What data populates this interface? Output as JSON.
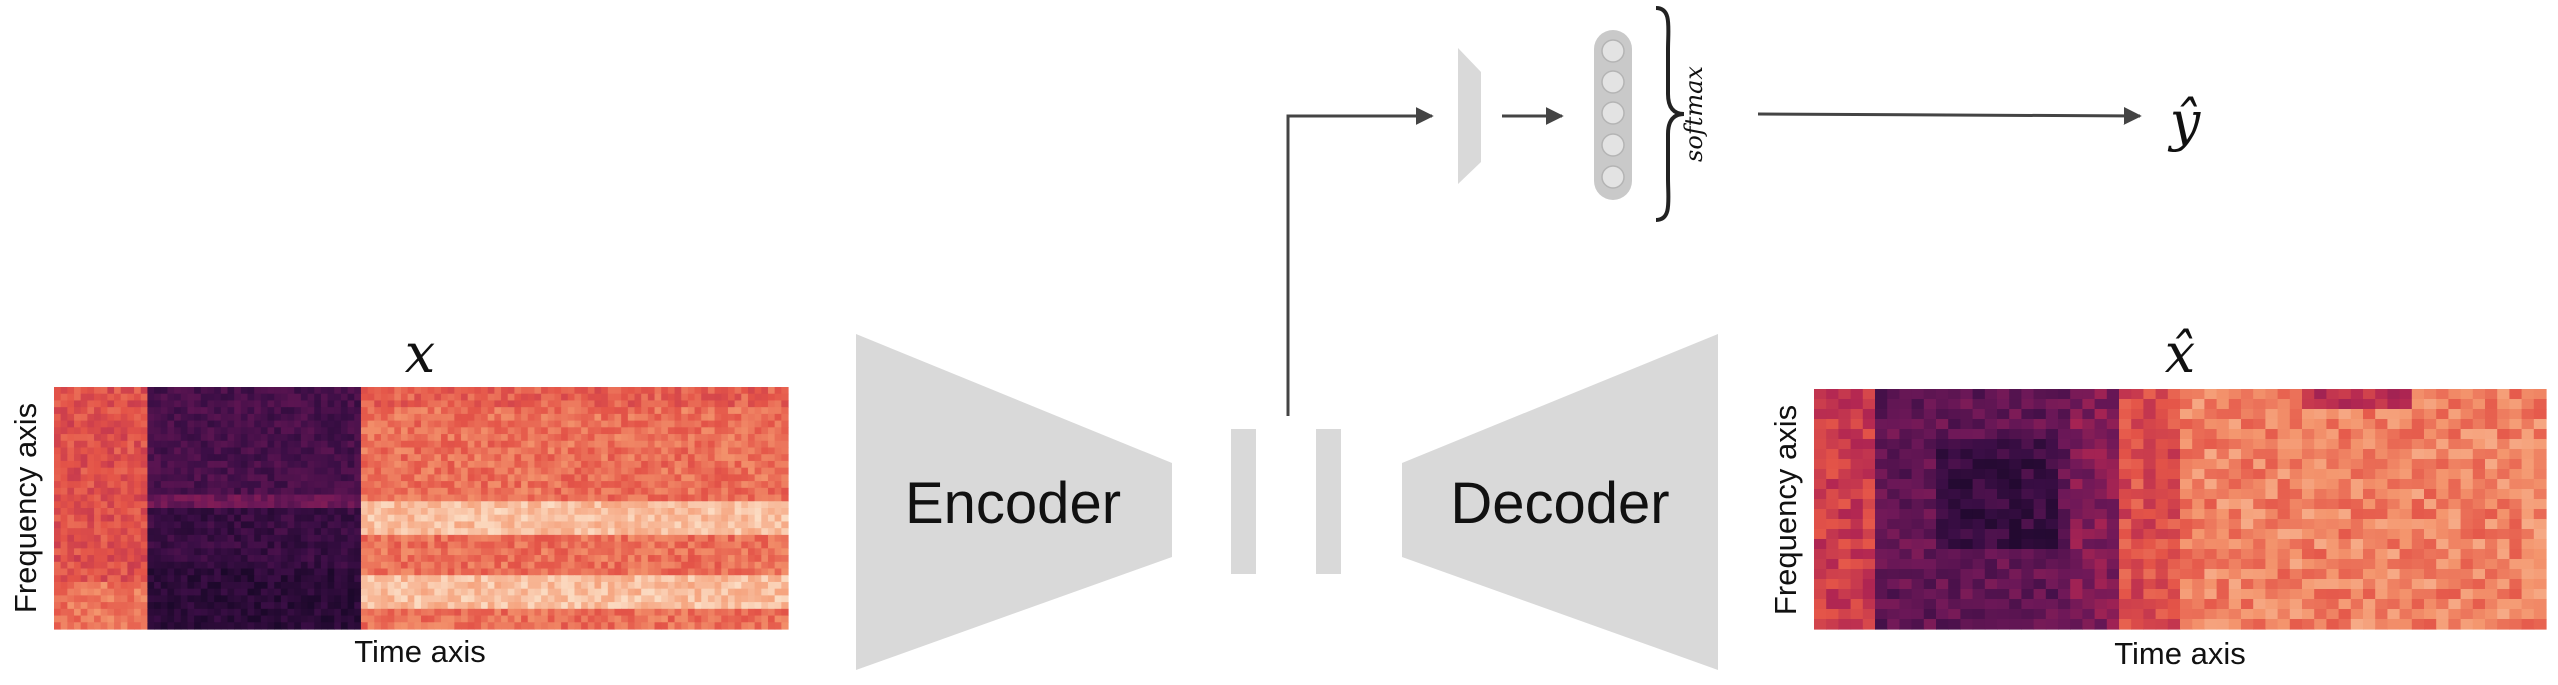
{
  "input_label": "x",
  "output_label": "x̂",
  "prediction_label": "ŷ",
  "encoder_label": "Encoder",
  "decoder_label": "Decoder",
  "softmax_label": "softmax",
  "input_spectrogram": {
    "ylabel": "Frequency axis",
    "xlabel": "Time axis"
  },
  "output_spectrogram": {
    "ylabel": "Frequency axis",
    "xlabel": "Time axis"
  },
  "colors": {
    "block_fill": "#d9d9d9",
    "arrow": "#444444",
    "node_fill": "#c8c8c8",
    "node_stroke": "#aaaaaa"
  }
}
